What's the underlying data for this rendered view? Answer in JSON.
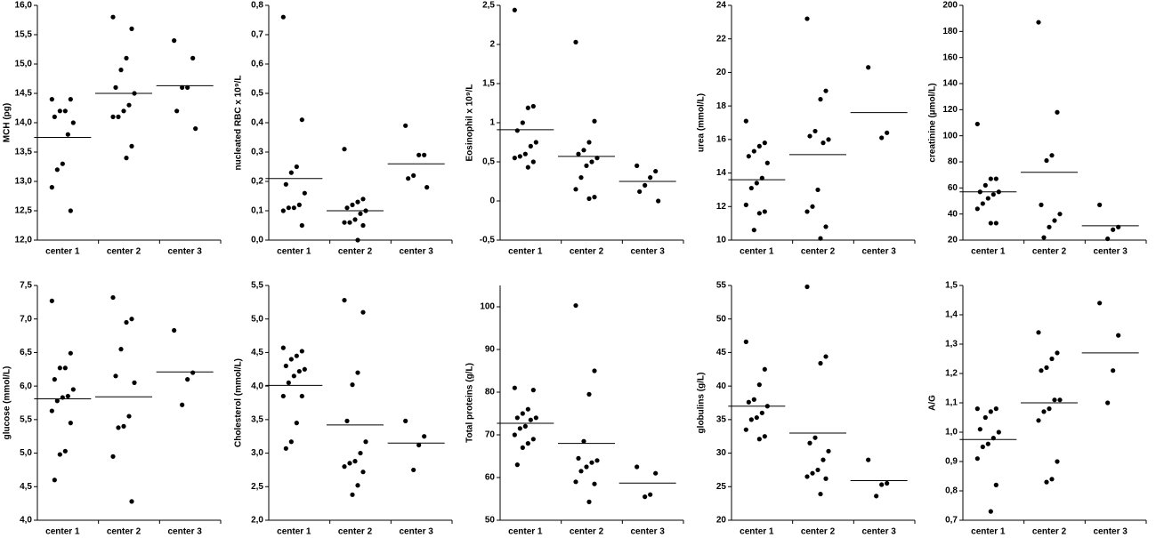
{
  "chart_data": [
    {
      "type": "strip",
      "ylabel": "MCH (pg)",
      "categories": [
        "center 1",
        "center 2",
        "center 3"
      ],
      "values": [
        [
          14.4,
          14.4,
          14.2,
          14.2,
          14.1,
          14.0,
          13.8,
          13.3,
          13.2,
          12.9,
          12.5
        ],
        [
          15.8,
          15.6,
          15.1,
          14.9,
          14.6,
          14.5,
          14.3,
          14.2,
          14.1,
          14.1,
          13.6,
          13.4
        ],
        [
          15.4,
          15.1,
          14.6,
          14.6,
          14.2,
          13.9
        ]
      ],
      "means": [
        13.75,
        14.5,
        14.63
      ],
      "ylim": [
        12,
        16
      ],
      "yticks": [
        {
          "value": 12,
          "label": "12,0"
        },
        {
          "value": 12.5,
          "label": "12,5"
        },
        {
          "value": 13,
          "label": "13,0"
        },
        {
          "value": 13.5,
          "label": "13,5"
        },
        {
          "value": 14,
          "label": "14,0"
        },
        {
          "value": 14.5,
          "label": "14,5"
        },
        {
          "value": 15,
          "label": "15,0"
        },
        {
          "value": 15.5,
          "label": "15,5"
        },
        {
          "value": 16,
          "label": "16,0"
        }
      ]
    },
    {
      "type": "strip",
      "ylabel": "nucleated RBC x 10⁹/L",
      "categories": [
        "center 1",
        "center 2",
        "center 3"
      ],
      "values": [
        [
          0.76,
          0.41,
          0.25,
          0.23,
          0.19,
          0.16,
          0.12,
          0.11,
          0.11,
          0.1,
          0.05
        ],
        [
          0.31,
          0.14,
          0.13,
          0.12,
          0.11,
          0.1,
          0.09,
          0.07,
          0.06,
          0.06,
          0.05,
          0.0
        ],
        [
          0.39,
          0.29,
          0.29,
          0.22,
          0.21,
          0.18
        ]
      ],
      "means": [
        0.21,
        0.1,
        0.26
      ],
      "ylim": [
        0,
        0.8
      ],
      "yticks": [
        {
          "value": 0,
          "label": "0,0"
        },
        {
          "value": 0.1,
          "label": "0,1"
        },
        {
          "value": 0.2,
          "label": "0,2"
        },
        {
          "value": 0.3,
          "label": "0,3"
        },
        {
          "value": 0.4,
          "label": "0,4"
        },
        {
          "value": 0.5,
          "label": "0,5"
        },
        {
          "value": 0.6,
          "label": "0,6"
        },
        {
          "value": 0.7,
          "label": "0,7"
        },
        {
          "value": 0.8,
          "label": "0,8"
        }
      ]
    },
    {
      "type": "strip",
      "ylabel": "Eosinophil x 10⁹/L",
      "categories": [
        "center 1",
        "center 2",
        "center 3"
      ],
      "values": [
        [
          2.44,
          1.21,
          1.19,
          1.0,
          0.9,
          0.75,
          0.7,
          0.6,
          0.57,
          0.55,
          0.5,
          0.43
        ],
        [
          2.03,
          1.02,
          0.75,
          0.65,
          0.6,
          0.55,
          0.5,
          0.45,
          0.3,
          0.15,
          0.05,
          0.03
        ],
        [
          0.45,
          0.38,
          0.3,
          0.2,
          0.12,
          0.0
        ]
      ],
      "means": [
        0.91,
        0.57,
        0.25
      ],
      "ylim": [
        -0.5,
        2.5
      ],
      "yticks": [
        {
          "value": -0.5,
          "label": "-0,5"
        },
        0,
        {
          "value": 0.5,
          "label": "0,5"
        },
        1,
        {
          "value": 1.5,
          "label": "1,5"
        },
        2,
        {
          "value": 2.5,
          "label": "2,5"
        }
      ]
    },
    {
      "type": "strip",
      "ylabel": "urea (mmol/L)",
      "categories": [
        "center 1",
        "center 2",
        "center 3"
      ],
      "values": [
        [
          17.1,
          15.8,
          15.6,
          15.3,
          15.0,
          14.6,
          13.7,
          13.4,
          13.1,
          12.1,
          11.7,
          11.6,
          10.6
        ],
        [
          23.2,
          18.9,
          18.4,
          16.5,
          16.2,
          16.0,
          15.8,
          13.0,
          12.0,
          11.7,
          10.8,
          10.1
        ],
        [
          20.3,
          16.4,
          16.1
        ]
      ],
      "means": [
        13.6,
        15.1,
        17.6
      ],
      "ylim": [
        10,
        24
      ],
      "yticks": [
        10,
        12,
        14,
        16,
        18,
        20,
        22,
        24
      ]
    },
    {
      "type": "strip",
      "ylabel": "creatinine (µmol/L)",
      "categories": [
        "center 1",
        "center 2",
        "center 3"
      ],
      "values": [
        [
          109,
          67,
          67,
          62,
          57,
          57,
          55,
          52,
          48,
          44,
          33,
          33
        ],
        [
          187,
          118,
          85,
          81,
          47,
          40,
          35,
          30,
          22
        ],
        [
          47,
          30,
          28,
          21
        ]
      ],
      "means": [
        57,
        72,
        31
      ],
      "ylim": [
        20,
        200
      ],
      "yticks": [
        20,
        40,
        60,
        80,
        100,
        120,
        140,
        160,
        180,
        200
      ]
    },
    {
      "type": "strip",
      "ylabel": "glucose (mmol/L)",
      "categories": [
        "center 1",
        "center 2",
        "center 3"
      ],
      "values": [
        [
          7.27,
          6.49,
          6.27,
          6.27,
          6.1,
          5.95,
          5.85,
          5.83,
          5.78,
          5.63,
          5.45,
          5.03,
          4.98,
          4.6
        ],
        [
          7.32,
          7.0,
          6.95,
          6.55,
          6.15,
          6.05,
          5.55,
          5.4,
          5.38,
          4.95,
          4.28
        ],
        [
          6.83,
          6.2,
          6.1,
          5.72
        ]
      ],
      "means": [
        5.81,
        5.84,
        6.21
      ],
      "ylim": [
        4,
        7.5
      ],
      "yticks": [
        {
          "value": 4,
          "label": "4,0"
        },
        {
          "value": 4.5,
          "label": "4,5"
        },
        {
          "value": 5,
          "label": "5,0"
        },
        {
          "value": 5.5,
          "label": "5,5"
        },
        {
          "value": 6,
          "label": "6,0"
        },
        {
          "value": 6.5,
          "label": "6,5"
        },
        {
          "value": 7,
          "label": "7,0"
        },
        {
          "value": 7.5,
          "label": "7,5"
        }
      ]
    },
    {
      "type": "strip",
      "ylabel": "Cholesterol (mmol/L)",
      "categories": [
        "center 1",
        "center 2",
        "center 3"
      ],
      "values": [
        [
          4.57,
          4.52,
          4.45,
          4.4,
          4.3,
          4.25,
          4.22,
          4.15,
          4.05,
          3.85,
          3.85,
          3.45,
          3.17,
          3.07
        ],
        [
          5.28,
          5.1,
          4.2,
          4.02,
          3.48,
          3.17,
          3.0,
          2.88,
          2.85,
          2.8,
          2.72,
          2.52,
          2.38
        ],
        [
          3.48,
          3.25,
          3.12,
          2.75
        ]
      ],
      "means": [
        4.01,
        3.42,
        3.15
      ],
      "ylim": [
        2,
        5.5
      ],
      "yticks": [
        {
          "value": 2,
          "label": "2,0"
        },
        {
          "value": 2.5,
          "label": "2,5"
        },
        {
          "value": 3,
          "label": "3,0"
        },
        {
          "value": 3.5,
          "label": "3,5"
        },
        {
          "value": 4,
          "label": "4,0"
        },
        {
          "value": 4.5,
          "label": "4,5"
        },
        {
          "value": 5,
          "label": "5,0"
        },
        {
          "value": 5.5,
          "label": "5,5"
        }
      ]
    },
    {
      "type": "strip",
      "ylabel": "Total proteins (g/L)",
      "categories": [
        "center 1",
        "center 2",
        "center 3"
      ],
      "values": [
        [
          81,
          80.5,
          76,
          75,
          74,
          74,
          73.5,
          72,
          71.5,
          70,
          69,
          68,
          67,
          63
        ],
        [
          100.3,
          85,
          79.5,
          68.5,
          64.5,
          64,
          63.5,
          62.5,
          61.5,
          59,
          58.5,
          54.3
        ],
        [
          62.5,
          61,
          56,
          55.5
        ]
      ],
      "means": [
        72.7,
        68,
        58.7
      ],
      "ylim": [
        50,
        105
      ],
      "yticks": [
        50,
        60,
        70,
        80,
        90,
        100
      ]
    },
    {
      "type": "strip",
      "ylabel": "globulins  (g/L)",
      "categories": [
        "center 1",
        "center 2",
        "center 3"
      ],
      "values": [
        [
          46.6,
          42.5,
          40.2,
          38,
          37.6,
          37,
          36,
          35.3,
          35,
          33.5,
          32.5,
          32.1
        ],
        [
          54.8,
          44.4,
          43.4,
          32.3,
          31.5,
          30.3,
          29,
          27.5,
          27,
          26.5,
          26.2,
          23.9
        ],
        [
          29,
          25.5,
          25.3,
          23.6
        ]
      ],
      "means": [
        37,
        33,
        25.9
      ],
      "ylim": [
        20,
        55
      ],
      "yticks": [
        20,
        25,
        30,
        35,
        40,
        45,
        50,
        55
      ]
    },
    {
      "type": "strip",
      "ylabel": "A/G",
      "categories": [
        "center 1",
        "center 2",
        "center 3"
      ],
      "values": [
        [
          1.08,
          1.08,
          1.07,
          1.05,
          1.01,
          1.0,
          0.98,
          0.96,
          0.95,
          0.91,
          0.82,
          0.73
        ],
        [
          1.34,
          1.27,
          1.25,
          1.22,
          1.21,
          1.11,
          1.11,
          1.08,
          1.07,
          1.04,
          0.9,
          0.84,
          0.83
        ],
        [
          1.44,
          1.33,
          1.21,
          1.1
        ]
      ],
      "means": [
        0.975,
        1.1,
        1.27
      ],
      "ylim": [
        0.7,
        1.5
      ],
      "yticks": [
        {
          "value": 0.7,
          "label": "0,7"
        },
        {
          "value": 0.8,
          "label": "0,8"
        },
        {
          "value": 0.9,
          "label": "0,9"
        },
        {
          "value": 1.0,
          "label": "1,0"
        },
        {
          "value": 1.1,
          "label": "1,1"
        },
        {
          "value": 1.2,
          "label": "1,2"
        },
        {
          "value": 1.3,
          "label": "1,3"
        },
        {
          "value": 1.4,
          "label": "1,4"
        },
        {
          "value": 1.5,
          "label": "1,5"
        }
      ]
    }
  ]
}
